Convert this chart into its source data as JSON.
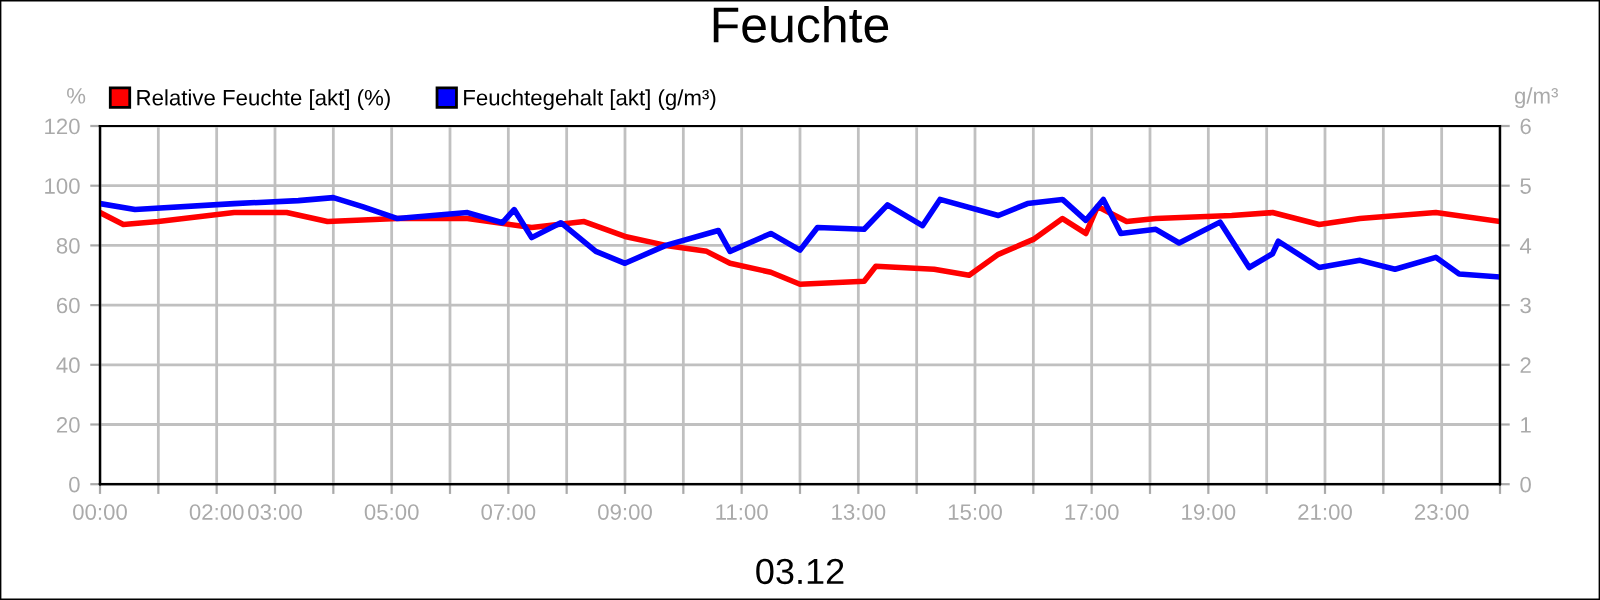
{
  "chart_data": {
    "type": "line",
    "title": "Feuchte",
    "xlabel": "03.12",
    "ylabel": "%",
    "y2label": "g/m³",
    "xlim": [
      0,
      24
    ],
    "xticks": [
      {
        "value": 0,
        "label": "00:00"
      },
      {
        "value": 1,
        "label": null
      },
      {
        "value": 2,
        "label": "02:00"
      },
      {
        "value": 3,
        "label": "03:00"
      },
      {
        "value": 4,
        "label": null
      },
      {
        "value": 5,
        "label": "05:00"
      },
      {
        "value": 6,
        "label": null
      },
      {
        "value": 7,
        "label": "07:00"
      },
      {
        "value": 8,
        "label": null
      },
      {
        "value": 9,
        "label": "09:00"
      },
      {
        "value": 10,
        "label": null
      },
      {
        "value": 11,
        "label": "11:00"
      },
      {
        "value": 12,
        "label": null
      },
      {
        "value": 13,
        "label": "13:00"
      },
      {
        "value": 14,
        "label": null
      },
      {
        "value": 15,
        "label": "15:00"
      },
      {
        "value": 16,
        "label": null
      },
      {
        "value": 17,
        "label": "17:00"
      },
      {
        "value": 18,
        "label": null
      },
      {
        "value": 19,
        "label": "19:00"
      },
      {
        "value": 20,
        "label": null
      },
      {
        "value": 21,
        "label": "21:00"
      },
      {
        "value": 22,
        "label": null
      },
      {
        "value": 23,
        "label": "23:00"
      },
      {
        "value": 24,
        "label": null
      }
    ],
    "ylim": [
      0,
      120
    ],
    "yticks": [
      0,
      20,
      40,
      60,
      80,
      100,
      120
    ],
    "y2lim": [
      0,
      6
    ],
    "y2ticks": [
      0,
      1,
      2,
      3,
      4,
      5,
      6
    ],
    "grid": true,
    "legend": "top left",
    "series": [
      {
        "name": "Relative Feuchte [akt] (%)",
        "color": "#ff0000",
        "x": [
          0,
          0.4,
          1,
          2.3,
          3.2,
          3.9,
          5.1,
          6.3,
          7.4,
          8.3,
          9,
          9.7,
          10.4,
          10.8,
          11.5,
          12,
          13.1,
          13.3,
          14.3,
          14.9,
          15.4,
          16,
          16.5,
          16.9,
          17.1,
          17.6,
          18.1,
          19.4,
          20.1,
          20.9,
          21.6,
          22.9,
          24
        ],
        "values": [
          91,
          87,
          88,
          91,
          91,
          88,
          89,
          89,
          86,
          88,
          83,
          80,
          78,
          74,
          71,
          67,
          68,
          73,
          72,
          70,
          77,
          82,
          89,
          84,
          93,
          88,
          89,
          90,
          91,
          87,
          89,
          91,
          88
        ]
      },
      {
        "name": "Feuchtegehalt [akt] (g/m³)",
        "color": "#0000ff",
        "axis": "y2",
        "x": [
          0,
          0.6,
          2.3,
          3.4,
          4,
          4.5,
          5.1,
          6.3,
          6.9,
          7.1,
          7.4,
          7.9,
          8.5,
          9,
          9.7,
          10.6,
          10.8,
          11.5,
          12,
          12.3,
          13.1,
          13.5,
          14.1,
          14.4,
          15.4,
          15.9,
          16.5,
          16.9,
          17.2,
          17.5,
          18.1,
          18.5,
          19.2,
          19.7,
          20.1,
          20.2,
          20.9,
          21.6,
          22.2,
          22.9,
          23.3,
          24
        ],
        "values": [
          4.7,
          4.6,
          4.7,
          4.75,
          4.8,
          4.65,
          4.45,
          4.55,
          4.38,
          4.6,
          4.13,
          4.38,
          3.9,
          3.7,
          4.0,
          4.25,
          3.9,
          4.2,
          3.92,
          4.3,
          4.27,
          4.68,
          4.33,
          4.77,
          4.5,
          4.7,
          4.77,
          4.42,
          4.77,
          4.2,
          4.27,
          4.04,
          4.39,
          3.63,
          3.86,
          4.07,
          3.63,
          3.75,
          3.6,
          3.8,
          3.52,
          3.47
        ]
      }
    ]
  }
}
